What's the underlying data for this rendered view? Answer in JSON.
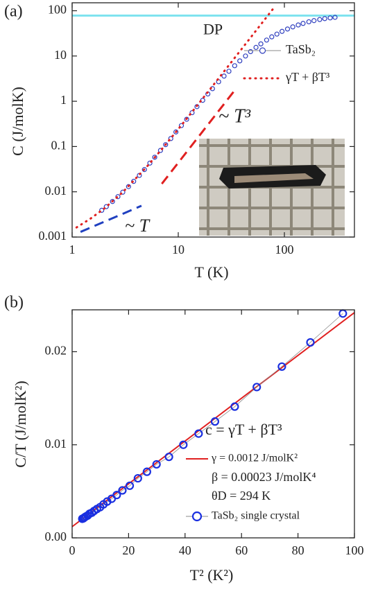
{
  "chart_data": [
    {
      "type": "scatter",
      "panel_label": "(a)",
      "x_label": "T (K)",
      "y_label": "C (J/molK)",
      "log_x": true,
      "log_y": true,
      "xlim": [
        1,
        457
      ],
      "ylim": [
        0.001,
        150
      ],
      "xticks": [
        1,
        10,
        100
      ],
      "yticks": [
        0.001,
        0.01,
        0.1,
        1,
        10,
        100
      ],
      "reference_lines": [
        {
          "name": "DP",
          "value": 78,
          "color": "#7fe3ef"
        }
      ],
      "series": [
        {
          "name": "TaSb₂",
          "color": "#2f3fbf",
          "style": "markers",
          "x": [
            1.9,
            2.1,
            2.4,
            2.7,
            3.0,
            3.4,
            3.8,
            4.3,
            4.8,
            5.4,
            6.0,
            6.8,
            7.6,
            8.5,
            9.5,
            10.7,
            12,
            13.5,
            15,
            17,
            19,
            21,
            24,
            27,
            30,
            34,
            38,
            43,
            48,
            54,
            60,
            68,
            76,
            85,
            95,
            107,
            120,
            135,
            150,
            170,
            190,
            215,
            240,
            270,
            300
          ],
          "values": [
            0.0039,
            0.0047,
            0.0061,
            0.0078,
            0.0098,
            0.013,
            0.017,
            0.023,
            0.031,
            0.043,
            0.058,
            0.082,
            0.11,
            0.15,
            0.21,
            0.29,
            0.4,
            0.56,
            0.76,
            1.05,
            1.45,
            1.9,
            2.7,
            3.6,
            4.6,
            6.1,
            7.8,
            10,
            12.5,
            15.5,
            18.5,
            22.5,
            26.5,
            30.5,
            35,
            39.5,
            44,
            48.5,
            52.5,
            57,
            60.5,
            64,
            67,
            69.5,
            71.5
          ]
        },
        {
          "name": "γT + βT³",
          "color": "#e02020",
          "style": "dotted",
          "x": [
            1.1,
            1.5,
            2,
            3,
            5,
            7,
            10,
            15,
            20,
            30,
            50,
            70,
            80
          ],
          "values": [
            0.00163,
            0.00258,
            0.00424,
            0.00981,
            0.0348,
            0.0873,
            0.242,
            0.794,
            1.864,
            6.246,
            28.81,
            78.97,
            117.86
          ]
        },
        {
          "name": "~ T³",
          "color": "#e02020",
          "style": "dashed",
          "x": [
            7,
            35
          ],
          "values": [
            0.015,
            1.9
          ]
        },
        {
          "name": "~ T",
          "color": "#2040c0",
          "style": "dashed",
          "x": [
            1.2,
            4.5
          ],
          "values": [
            0.0013,
            0.0049
          ]
        }
      ]
    },
    {
      "type": "scatter",
      "panel_label": "(b)",
      "x_label": "T² (K²)",
      "y_label": "C/T (J/molK²)",
      "log_x": false,
      "log_y": false,
      "xlim": [
        0,
        100
      ],
      "ylim": [
        0,
        0.0245
      ],
      "xticks": [
        0,
        20,
        40,
        60,
        80,
        100
      ],
      "yticks": [
        {
          "value": 0,
          "label": "0.00"
        },
        0.01,
        0.02
      ],
      "annotations": [
        "c = γT + βT³",
        "β = 0.00023 J/molK⁴",
        "θD = 294 K"
      ],
      "series": [
        {
          "name": "γ = 0.0012 J/molK²",
          "color": "#e02020",
          "style": "solid",
          "x": [
            0,
            100
          ],
          "values": [
            0.0012,
            0.0242
          ]
        },
        {
          "name": "TaSb₂ single crystal",
          "color": "#1a2fe0",
          "style": "markers-line",
          "x": [
            3.6,
            4.0,
            4.4,
            4.9,
            5.5,
            6.2,
            7.0,
            7.8,
            8.8,
            9.9,
            11.1,
            12.4,
            14.0,
            15.8,
            17.8,
            20.4,
            23.3,
            26.5,
            29.9,
            34.3,
            39.4,
            44.8,
            50.6,
            57.6,
            65.4,
            74.3,
            84.4,
            95.9
          ],
          "values": [
            0.00205,
            0.0021,
            0.0022,
            0.0023,
            0.0024,
            0.0026,
            0.0027,
            0.0029,
            0.0031,
            0.0033,
            0.0036,
            0.0039,
            0.0042,
            0.0046,
            0.0051,
            0.0056,
            0.0064,
            0.0071,
            0.0079,
            0.0087,
            0.01,
            0.0112,
            0.0125,
            0.0141,
            0.0162,
            0.0184,
            0.021,
            0.0241
          ]
        }
      ]
    }
  ]
}
